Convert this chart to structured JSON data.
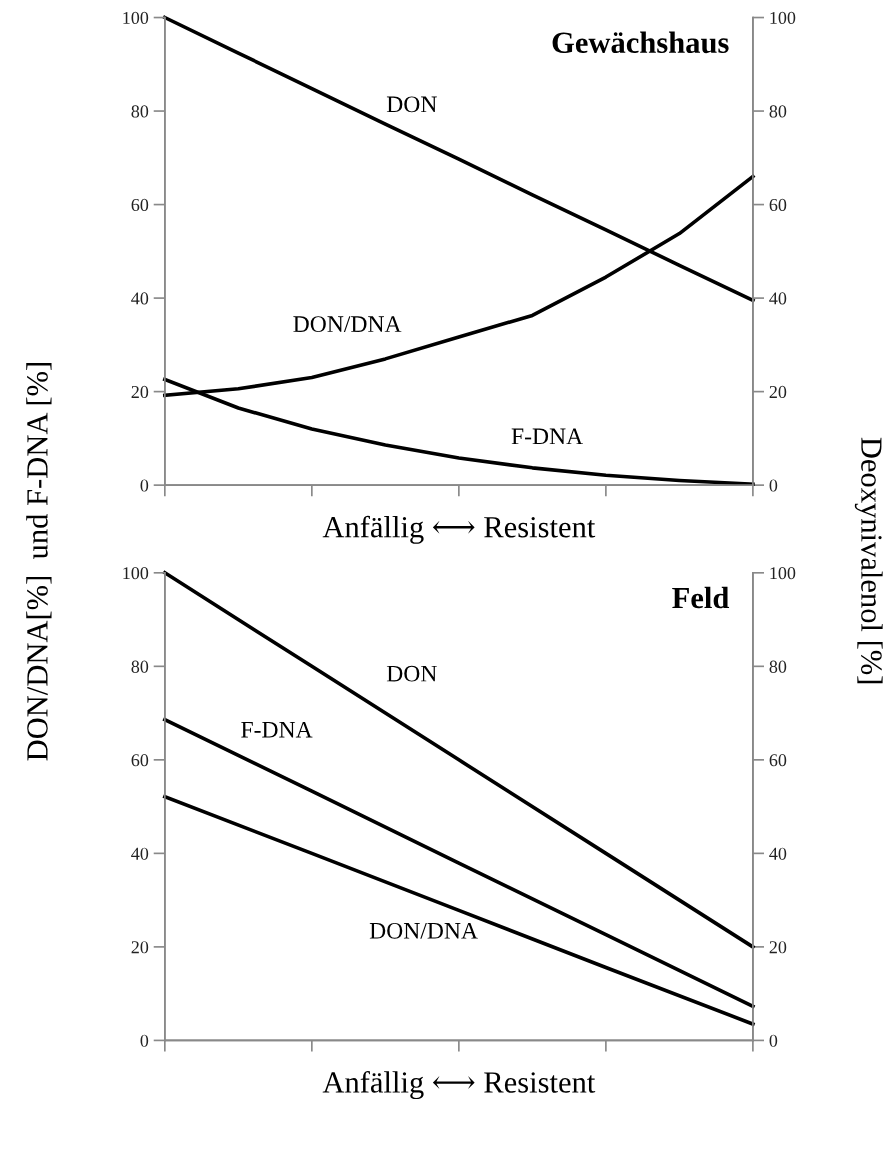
{
  "chart_data": [
    {
      "type": "line",
      "title": "Gewächshaus",
      "xlabel": "Anfällig ⟷ Resistent",
      "ylabel": "DON/DNA[%]  und F-DNA [%]",
      "y2label": "Deoxynivalenol [%]",
      "categories": [
        null,
        null,
        null,
        null,
        null,
        null,
        null,
        null,
        null
      ],
      "ylim": [
        0,
        100
      ],
      "yticks": [
        0,
        20,
        40,
        60,
        80,
        100
      ],
      "y2lim": [
        0,
        100
      ],
      "y2ticks": [
        0,
        20,
        40,
        60,
        80,
        100
      ],
      "tick_labels": "y",
      "grid": false,
      "legend": false,
      "line_style": "solid",
      "marker": "none",
      "series": [
        {
          "color": "#000000",
          "axis": "y2",
          "values": [
            100,
            92.4,
            84.8,
            77.2,
            69.7,
            62.1,
            54.6,
            47,
            39.5
          ]
        },
        {
          "color": "#000000",
          "values": [
            19.2,
            20.6,
            23,
            27,
            31.7,
            36.3,
            44.5,
            53.8,
            66
          ]
        },
        {
          "color": "#000000",
          "values": [
            22.6,
            16.5,
            12,
            8.6,
            5.8,
            3.7,
            2.1,
            1,
            0.2
          ]
        }
      ],
      "annotations": [
        "DON",
        "DON/DNA",
        "F-DNA"
      ]
    },
    {
      "type": "line",
      "title": "Feld",
      "xlabel": "Anfällig ⟷ Resistent",
      "categories": [
        null,
        null,
        null,
        null,
        null
      ],
      "ylim": [
        0,
        100
      ],
      "yticks": [
        0,
        20,
        40,
        60,
        80,
        100
      ],
      "y2lim": [
        0,
        100
      ],
      "y2ticks": [
        0,
        20,
        40,
        60,
        80,
        100
      ],
      "tick_labels": "y",
      "grid": false,
      "legend": false,
      "line_style": "solid",
      "marker": "none",
      "series": [
        {
          "color": "#000000",
          "axis": "y2",
          "values": [
            100,
            80,
            60,
            40,
            20
          ]
        },
        {
          "color": "#000000",
          "values": [
            68.6,
            53.3,
            37.9,
            22.6,
            7.3
          ]
        },
        {
          "color": "#000000",
          "values": [
            52.1,
            40,
            27.8,
            15.6,
            3.5
          ]
        }
      ],
      "annotations": [
        "DON",
        "F-DNA",
        "DON/DNA"
      ]
    }
  ]
}
